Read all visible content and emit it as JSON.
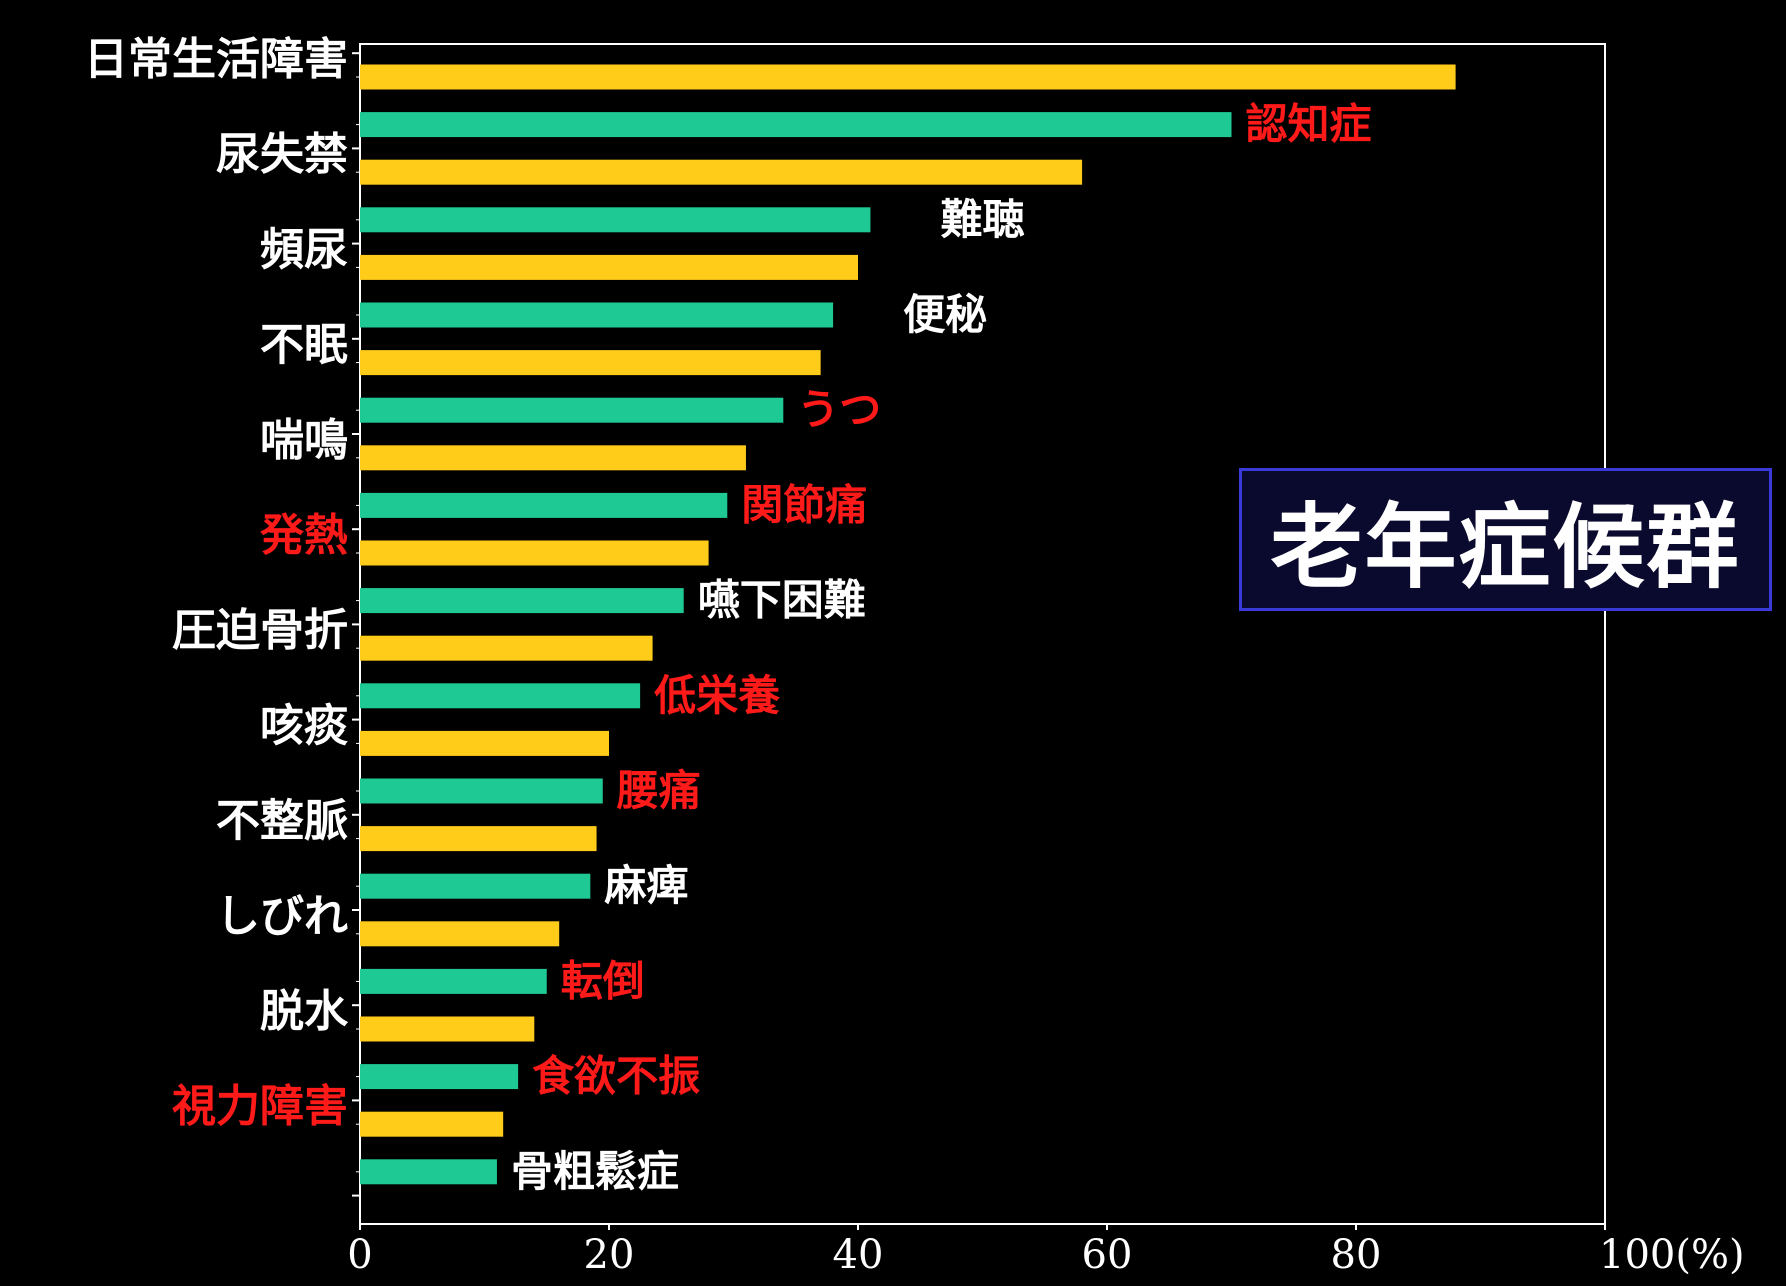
{
  "chart_data": {
    "type": "bar",
    "orientation": "horizontal",
    "title": "老年症候群",
    "xlabel": "",
    "xlim": [
      0,
      100
    ],
    "x_ticks": [
      "0",
      "20",
      "40",
      "60",
      "80",
      "100(%)"
    ],
    "grid": false,
    "category_labels": [
      {
        "text": "日常生活障害",
        "color": "#ffffff"
      },
      {
        "text": "尿失禁",
        "color": "#ffffff"
      },
      {
        "text": "頻尿",
        "color": "#ffffff"
      },
      {
        "text": "不眠",
        "color": "#ffffff"
      },
      {
        "text": "喘鳴",
        "color": "#ffffff"
      },
      {
        "text": "発熱",
        "color": "#ff1a1a"
      },
      {
        "text": "圧迫骨折",
        "color": "#ffffff"
      },
      {
        "text": "咳痰",
        "color": "#ffffff"
      },
      {
        "text": "不整脈",
        "color": "#ffffff"
      },
      {
        "text": "しびれ",
        "color": "#ffffff"
      },
      {
        "text": "脱水",
        "color": "#ffffff"
      },
      {
        "text": "視力障害",
        "color": "#ff1a1a"
      }
    ],
    "bar_labels": [
      {
        "text": "認知症",
        "color": "#ff1a1a"
      },
      {
        "text": "難聴",
        "color": "#ffffff"
      },
      {
        "text": "便秘",
        "color": "#ffffff"
      },
      {
        "text": "うつ",
        "color": "#ff1a1a"
      },
      {
        "text": "関節痛",
        "color": "#ff1a1a"
      },
      {
        "text": "嚥下困難",
        "color": "#ffffff"
      },
      {
        "text": "低栄養",
        "color": "#ff1a1a"
      },
      {
        "text": "腰痛",
        "color": "#ff1a1a"
      },
      {
        "text": "麻痺",
        "color": "#ffffff"
      },
      {
        "text": "転倒",
        "color": "#ff1a1a"
      },
      {
        "text": "食欲不振",
        "color": "#ff1a1a"
      },
      {
        "text": "骨粗鬆症",
        "color": "#ffffff"
      }
    ],
    "series": [
      {
        "values": [
          88,
          58,
          40,
          37,
          31,
          28,
          23.5,
          20,
          19,
          16,
          14,
          11.5
        ]
      },
      {
        "values": [
          70,
          41,
          38,
          34,
          29.5,
          26,
          22.5,
          19.5,
          18.5,
          15,
          12.7,
          11
        ]
      }
    ],
    "colors": {
      "series_yellow": "#ffcc1a",
      "series_green": "#1fc994",
      "axis": "#ffffff",
      "background": "#000000",
      "title_box_bg": "#0a0a2e",
      "title_box_border": "#3a3ad8"
    }
  }
}
